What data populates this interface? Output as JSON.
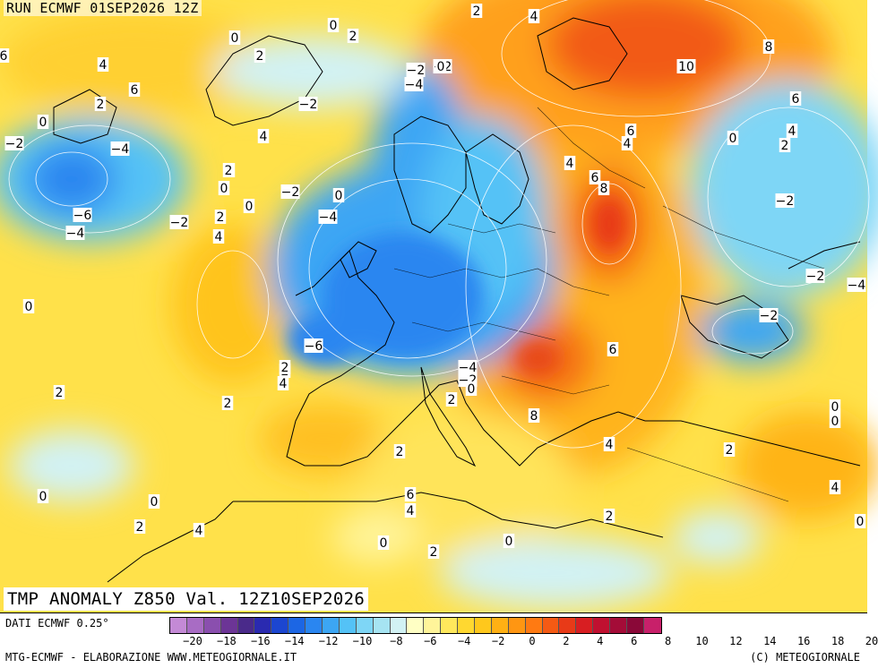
{
  "run_title": "RUN ECMWF 01SEP2026 12Z",
  "main_title": "TMP ANOMALY Z850 Val. 12Z10SEP2026",
  "data_source": "DATI ECMWF 0.25°",
  "credits": "MTG-ECMWF - ELABORAZIONE WWW.METEOGIORNALE.IT",
  "copyright": "(C) METEOGIORNALE",
  "colorbar": {
    "colors": [
      "#c48ad6",
      "#a86cc4",
      "#8a4fae",
      "#6c3596",
      "#4a2a8a",
      "#2a2ab0",
      "#1c46d0",
      "#1c66e4",
      "#2a86f0",
      "#3ca6f4",
      "#54c2f6",
      "#7ed6f6",
      "#a6e4f2",
      "#d2f2f4",
      "#ffffc4",
      "#fff49a",
      "#ffe85c",
      "#ffd830",
      "#ffc81c",
      "#ffb014",
      "#ff9612",
      "#ff7a12",
      "#f45a14",
      "#e83a18",
      "#d81e22",
      "#c01030",
      "#a40c38",
      "#8a0838",
      "#c8206a"
    ],
    "ticks": [
      "−20",
      "−18",
      "−16",
      "−14",
      "−12",
      "−10",
      "−8",
      "−6",
      "−4",
      "−2",
      "0",
      "2",
      "4",
      "6",
      "8",
      "10",
      "12",
      "14",
      "16",
      "18",
      "20"
    ]
  },
  "isotherm_labels": [
    {
      "text": "2"
    },
    {
      "text": "4"
    },
    {
      "text": "0"
    },
    {
      "text": "2"
    },
    {
      "text": "0"
    },
    {
      "text": "6"
    },
    {
      "text": "4"
    },
    {
      "text": "6"
    },
    {
      "text": "2"
    },
    {
      "text": "2"
    },
    {
      "text": "0"
    },
    {
      "text": "−2"
    },
    {
      "text": "−4"
    },
    {
      "text": "−2"
    },
    {
      "text": "−6"
    },
    {
      "text": "−4"
    },
    {
      "text": "−2"
    },
    {
      "text": "2"
    },
    {
      "text": "0"
    },
    {
      "text": "2"
    },
    {
      "text": "4"
    },
    {
      "text": "0"
    },
    {
      "text": "4"
    },
    {
      "text": "2"
    },
    {
      "text": "0"
    },
    {
      "text": "−2"
    },
    {
      "text": "−4"
    },
    {
      "text": "−2"
    },
    {
      "text": "−4"
    },
    {
      "text": "−2"
    },
    {
      "text": "0"
    },
    {
      "text": "4"
    },
    {
      "text": "6"
    },
    {
      "text": "4"
    },
    {
      "text": "6"
    },
    {
      "text": "8"
    },
    {
      "text": "10"
    },
    {
      "text": "8"
    },
    {
      "text": "6"
    },
    {
      "text": "4"
    },
    {
      "text": "2"
    },
    {
      "text": "0"
    },
    {
      "text": "−2"
    },
    {
      "text": "−2"
    },
    {
      "text": "−4"
    },
    {
      "text": "−2"
    },
    {
      "text": "0"
    },
    {
      "text": "2"
    },
    {
      "text": "−6"
    },
    {
      "text": "2"
    },
    {
      "text": "4"
    },
    {
      "text": "2"
    },
    {
      "text": "2"
    },
    {
      "text": "−4"
    },
    {
      "text": "−2"
    },
    {
      "text": "0"
    },
    {
      "text": "2"
    },
    {
      "text": "8"
    },
    {
      "text": "6"
    },
    {
      "text": "4"
    },
    {
      "text": "2"
    },
    {
      "text": "0"
    },
    {
      "text": "0"
    },
    {
      "text": "2"
    },
    {
      "text": "6"
    },
    {
      "text": "4"
    },
    {
      "text": "4"
    },
    {
      "text": "0"
    },
    {
      "text": "2"
    },
    {
      "text": "0"
    },
    {
      "text": "2"
    },
    {
      "text": "0"
    },
    {
      "text": "0"
    },
    {
      "text": "2"
    },
    {
      "text": "4"
    },
    {
      "text": "0"
    }
  ]
}
